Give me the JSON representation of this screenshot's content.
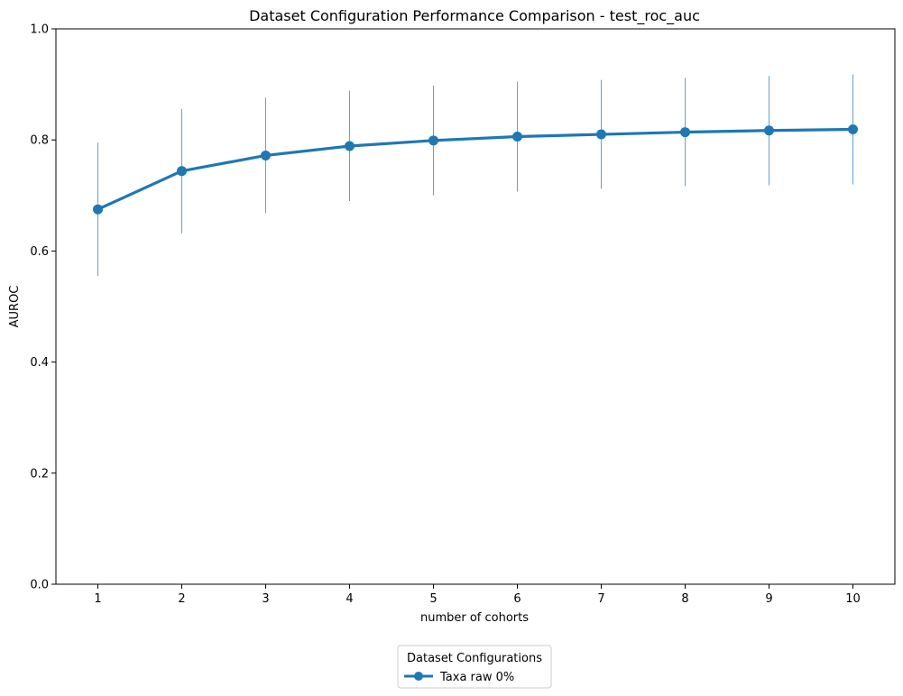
{
  "chart_data": {
    "type": "line",
    "title": "Dataset Configuration Performance Comparison - test_roc_auc",
    "xlabel": "number of cohorts",
    "ylabel": "AUROC",
    "x": [
      1,
      2,
      3,
      4,
      5,
      6,
      7,
      8,
      9,
      10
    ],
    "xlim": [
      0.5,
      10.5
    ],
    "ylim": [
      0.0,
      1.0
    ],
    "y_ticks": [
      "0.0",
      "0.2",
      "0.4",
      "0.6",
      "0.8",
      "1.0"
    ],
    "x_ticks": [
      "1",
      "2",
      "3",
      "4",
      "5",
      "6",
      "7",
      "8",
      "9",
      "10"
    ],
    "grid": false,
    "legend": {
      "title": "Dataset Configurations",
      "placement": "bottom-center, below axes"
    },
    "series": [
      {
        "name": "Taxa raw 0%",
        "color": "#1f77b4",
        "marker": "circle",
        "values": [
          0.675,
          0.744,
          0.772,
          0.789,
          0.799,
          0.806,
          0.81,
          0.814,
          0.817,
          0.819
        ],
        "error_low": [
          0.555,
          0.632,
          0.668,
          0.69,
          0.7,
          0.707,
          0.712,
          0.717,
          0.718,
          0.72
        ],
        "error_high": [
          0.795,
          0.856,
          0.876,
          0.889,
          0.898,
          0.905,
          0.908,
          0.912,
          0.915,
          0.918
        ]
      }
    ]
  }
}
